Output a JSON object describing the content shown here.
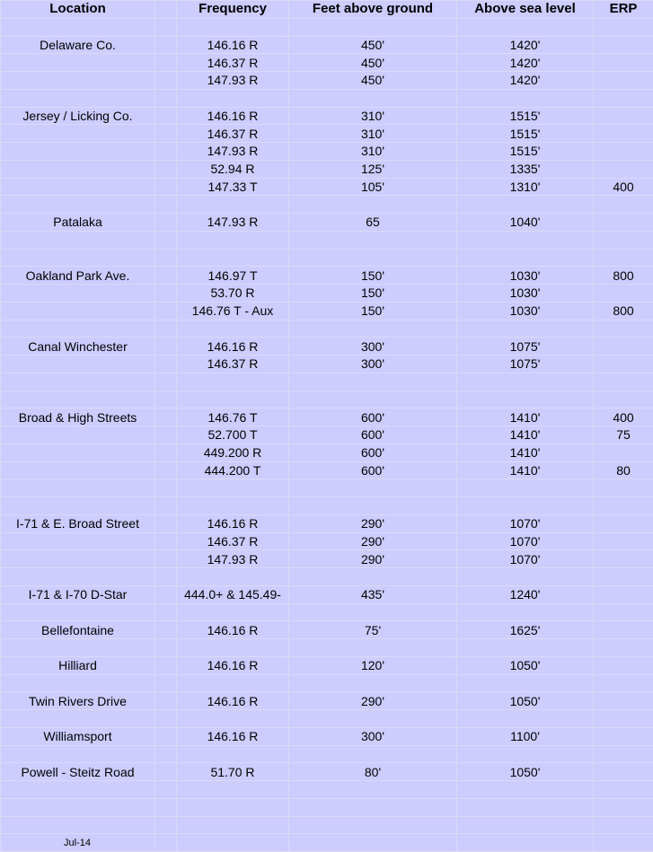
{
  "headers": {
    "location": "Location",
    "frequency": "Frequency",
    "feet": "Feet above ground",
    "asl": "Above sea level",
    "erp": "ERP"
  },
  "rows": [
    {},
    {
      "location": "Delaware Co.",
      "frequency": "146.16 R",
      "feet": "450'",
      "asl": "1420'"
    },
    {
      "frequency": "146.37 R",
      "feet": "450'",
      "asl": "1420'"
    },
    {
      "frequency": "147.93 R",
      "feet": "450'",
      "asl": "1420'"
    },
    {},
    {
      "location": "Jersey / Licking Co.",
      "frequency": "146.16 R",
      "feet": "310'",
      "asl": "1515'"
    },
    {
      "frequency": "146.37 R",
      "feet": "310'",
      "asl": "1515'"
    },
    {
      "frequency": "147.93 R",
      "feet": "310'",
      "asl": "1515'"
    },
    {
      "frequency": "52.94 R",
      "feet": "125'",
      "asl": "1335'"
    },
    {
      "frequency": "147.33 T",
      "feet": "105'",
      "asl": "1310'",
      "erp": "400"
    },
    {},
    {
      "location": "Patalaka",
      "frequency": "147.93 R",
      "feet": "65",
      "asl": "1040'"
    },
    {},
    {},
    {
      "location": "Oakland Park Ave.",
      "frequency": "146.97 T",
      "feet": "150'",
      "asl": "1030'",
      "erp": "800"
    },
    {
      "frequency": "53.70 R",
      "feet": "150'",
      "asl": "1030'"
    },
    {
      "frequency": "146.76 T - Aux",
      "feet": "150'",
      "asl": "1030'",
      "erp": "800"
    },
    {},
    {
      "location": "Canal Winchester",
      "frequency": "146.16 R",
      "feet": "300'",
      "asl": "1075'"
    },
    {
      "frequency": "146.37 R",
      "feet": "300'",
      "asl": "1075'"
    },
    {},
    {},
    {
      "location": "Broad & High Streets",
      "frequency": "146.76 T",
      "feet": "600'",
      "asl": "1410'",
      "erp": "400"
    },
    {
      "frequency": "52.700 T",
      "feet": "600'",
      "asl": "1410'",
      "erp": "75"
    },
    {
      "frequency": "449.200 R",
      "feet": "600'",
      "asl": "1410'"
    },
    {
      "frequency": "444.200 T",
      "feet": "600'",
      "asl": "1410'",
      "erp": "80"
    },
    {},
    {},
    {
      "location": "I-71 & E. Broad Street",
      "frequency": "146.16 R",
      "feet": "290'",
      "asl": "1070'"
    },
    {
      "frequency": "146.37 R",
      "feet": "290'",
      "asl": "1070'"
    },
    {
      "frequency": "147.93 R",
      "feet": "290'",
      "asl": "1070'"
    },
    {},
    {
      "location": "I-71 & I-70   D-Star",
      "frequency": "444.0+ & 145.49-",
      "feet": "435'",
      "asl": "1240'"
    },
    {},
    {
      "location": "Bellefontaine",
      "frequency": "146.16 R",
      "feet": "75'",
      "asl": "1625'"
    },
    {},
    {
      "location": "Hilliard",
      "frequency": "146.16 R",
      "feet": "120'",
      "asl": "1050'"
    },
    {},
    {
      "location": "Twin Rivers Drive",
      "frequency": "146.16 R",
      "feet": "290'",
      "asl": "1050'"
    },
    {},
    {
      "location": "Williamsport",
      "frequency": "146.16 R",
      "feet": "300'",
      "asl": "1100'"
    },
    {},
    {
      "location": "Powell - Steitz Road",
      "frequency": "51.70 R",
      "feet": "80'",
      "asl": "1050'"
    },
    {},
    {},
    {},
    {
      "note": "Jul-14"
    }
  ]
}
